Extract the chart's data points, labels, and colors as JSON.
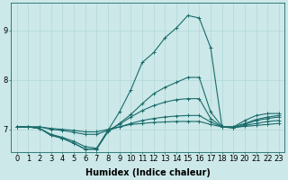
{
  "xlabel": "Humidex (Indice chaleur)",
  "background_color": "#cce8e8",
  "line_color": "#1a6b6b",
  "grid_color": "#aad4d4",
  "xlim": [
    -0.5,
    23.5
  ],
  "ylim": [
    6.55,
    9.55
  ],
  "yticks": [
    7,
    8,
    9
  ],
  "xticks": [
    0,
    1,
    2,
    3,
    4,
    5,
    6,
    7,
    8,
    9,
    10,
    11,
    12,
    13,
    14,
    15,
    16,
    17,
    18,
    19,
    20,
    21,
    22,
    23
  ],
  "series": [
    [
      7.05,
      7.05,
      7.05,
      7.02,
      7.0,
      6.98,
      6.95,
      6.95,
      7.0,
      7.05,
      7.1,
      7.12,
      7.14,
      7.15,
      7.16,
      7.16,
      7.16,
      7.1,
      7.05,
      7.04,
      7.06,
      7.08,
      7.1,
      7.12
    ],
    [
      7.05,
      7.05,
      7.05,
      7.0,
      6.98,
      6.94,
      6.9,
      6.9,
      6.98,
      7.05,
      7.12,
      7.18,
      7.22,
      7.25,
      7.27,
      7.28,
      7.28,
      7.15,
      7.05,
      7.03,
      7.08,
      7.12,
      7.16,
      7.18
    ],
    [
      7.05,
      7.05,
      7.02,
      6.9,
      6.84,
      6.76,
      6.65,
      6.62,
      6.98,
      7.1,
      7.25,
      7.38,
      7.48,
      7.55,
      7.6,
      7.62,
      7.62,
      7.22,
      7.05,
      7.03,
      7.1,
      7.18,
      7.22,
      7.25
    ],
    [
      7.05,
      7.05,
      7.02,
      6.88,
      6.82,
      6.72,
      6.6,
      6.6,
      6.95,
      7.12,
      7.3,
      7.52,
      7.72,
      7.85,
      7.95,
      8.05,
      8.05,
      7.35,
      7.06,
      7.05,
      7.12,
      7.2,
      7.25,
      7.28
    ],
    [
      7.05,
      7.05,
      7.02,
      6.88,
      6.82,
      6.72,
      6.6,
      6.6,
      6.98,
      7.35,
      7.8,
      8.35,
      8.55,
      8.85,
      9.05,
      9.3,
      9.25,
      8.65,
      7.05,
      7.05,
      7.18,
      7.28,
      7.32,
      7.32
    ]
  ],
  "marker": "+",
  "markersize": 3,
  "linewidth": 0.8,
  "tick_fontsize": 6,
  "xlabel_fontsize": 7
}
